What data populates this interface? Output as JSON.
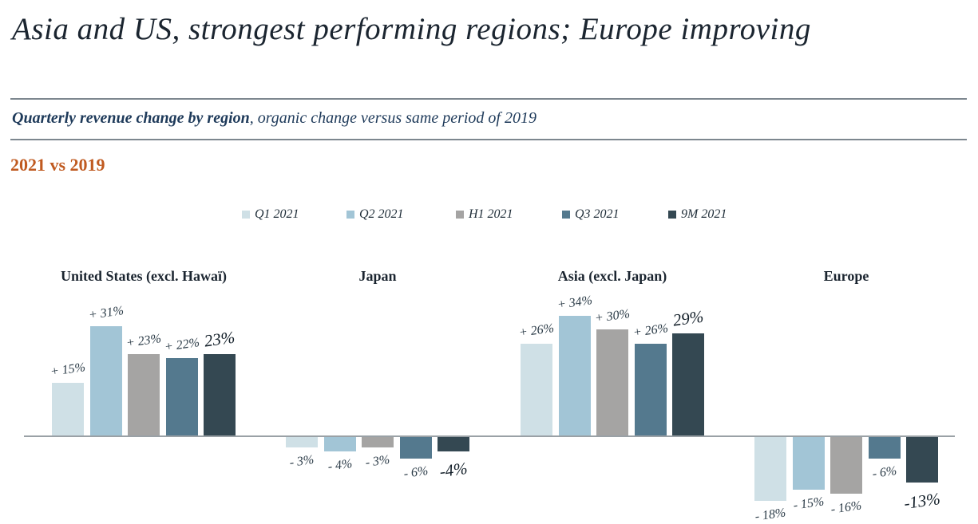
{
  "title": "Asia and US, strongest performing regions; Europe improving",
  "subtitle": {
    "bold": "Quarterly revenue change by region",
    "rest": ", organic change versus same period of 2019"
  },
  "period_label": "2021 vs 2019",
  "colors": {
    "accent_orange": "#c05a20",
    "navy_text": "#1e3a5a",
    "axis_line": "#9aa1a6",
    "divider_line": "#7d878f"
  },
  "chart_data": {
    "type": "bar",
    "title": "Quarterly revenue change by region, organic change versus same period of 2019",
    "unit": "%",
    "legend_position": "top-center",
    "axis": "zero-baseline only, no y-axis shown",
    "series": [
      {
        "name": "Q1 2021",
        "color": "#cfe0e6"
      },
      {
        "name": "Q2 2021",
        "color": "#a2c5d6"
      },
      {
        "name": "H1 2021",
        "color": "#a5a4a3"
      },
      {
        "name": "Q3 2021",
        "color": "#54798e"
      },
      {
        "name": "9M 2021",
        "color": "#344852"
      }
    ],
    "groups": [
      {
        "name": "United States (excl. Hawaï)",
        "values": [
          15,
          31,
          23,
          22,
          23
        ],
        "labels": [
          "+ 15%",
          "+ 31%",
          "+ 23%",
          "+ 22%",
          "23%"
        ]
      },
      {
        "name": "Japan",
        "values": [
          -3,
          -4,
          -3,
          -6,
          -4
        ],
        "labels": [
          "- 3%",
          "- 4%",
          "- 3%",
          "- 6%",
          "-4%"
        ]
      },
      {
        "name": "Asia (excl. Japan)",
        "values": [
          26,
          34,
          30,
          26,
          29
        ],
        "labels": [
          "+ 26%",
          "+ 34%",
          "+ 30%",
          "+ 26%",
          "29%"
        ]
      },
      {
        "name": "Europe",
        "values": [
          -18,
          -15,
          -16,
          -6,
          -13
        ],
        "labels": [
          "- 18%",
          "- 15%",
          "- 16%",
          "- 6%",
          "-13%"
        ]
      }
    ]
  }
}
